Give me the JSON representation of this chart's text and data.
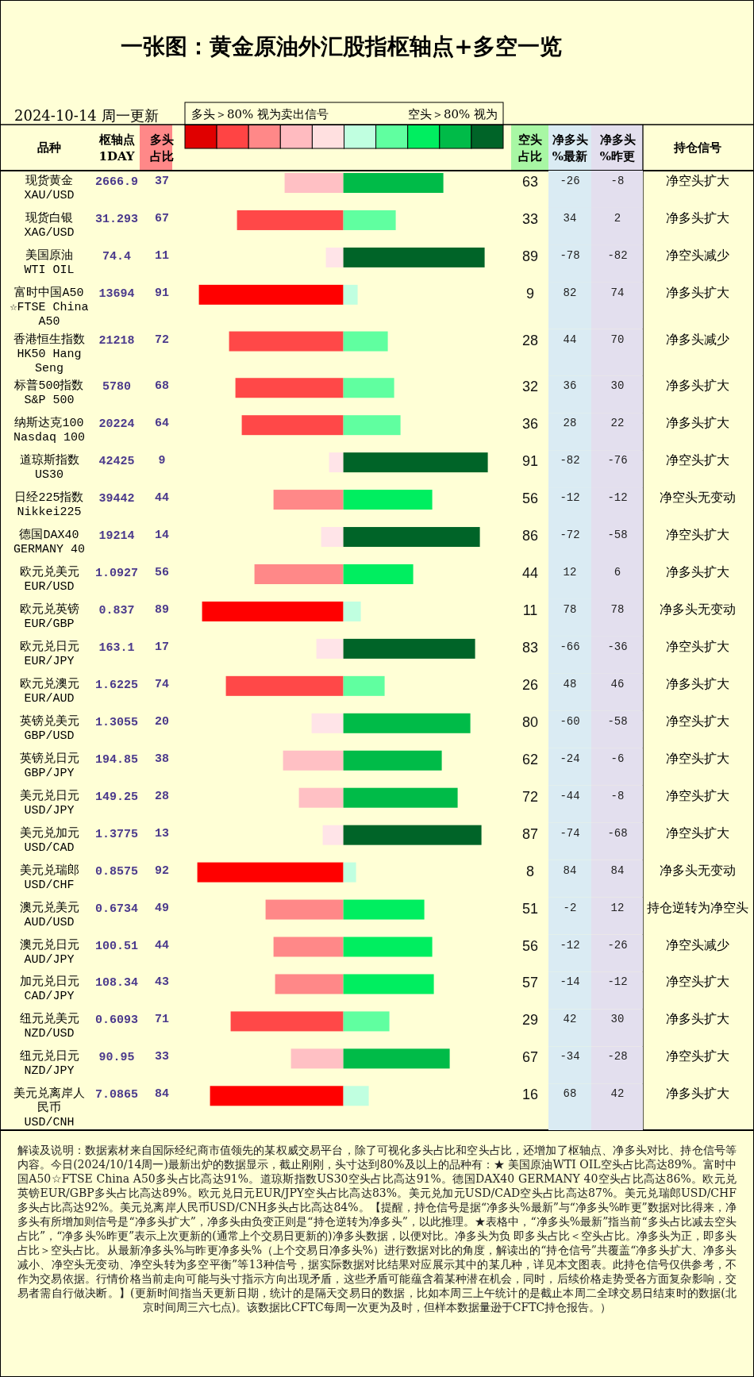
{
  "chart_data": [
    {
      "type": "bar",
      "orientation": "horizontal",
      "title": "一张图：黄金原油外汇股指枢轴点+多空一览",
      "subtitle": "2024-10-14 周一更新",
      "ylabel": "品种",
      "y2label": "枢轴点\n1DAY",
      "categories": [
        "现货黄金\nXAU/USD",
        "现货白银\nXAG/USD",
        "美国原油\nWTI OIL",
        "富时中国A50\n☆FTSE China A50",
        "香港恒生指数\nHK50 Hang Seng",
        "标普500指数\nS&P 500",
        "纳斯达克100\nNasdaq 100",
        "道琼斯指数\nUS30",
        "日经225指数\nNikkei225",
        "德国DAX40\nGERMANY 40",
        "欧元兑美元\nEUR/USD",
        "欧元兑英镑\nEUR/GBP",
        "欧元兑日元\nEUR/JPY",
        "欧元兑澳元\nEUR/AUD",
        "英镑兑美元\nGBP/USD",
        "英镑兑日元\nGBP/JPY",
        "美元兑日元\nUSD/JPY",
        "美元兑加元\nUSD/CAD",
        "美元兑瑞郎\nUSD/CHF",
        "澳元兑美元\nAUD/USD",
        "澳元兑日元\nAUD/JPY",
        "加元兑日元\nCAD/JPY",
        "纽元兑美元\nNZD/USD",
        "纽元兑日元\nNZD/JPY",
        "美元兑离岸人民币\nUSD/CNH"
      ],
      "y2_categories": [
        "2666.9",
        "31.293",
        "74.4",
        "13694",
        "21218",
        "5780",
        "20224",
        "42425",
        "39442",
        "19214",
        "1.0927",
        "0.837",
        "163.1",
        "1.6225",
        "1.3055",
        "194.85",
        "149.25",
        "1.3775",
        "0.8575",
        "0.6734",
        "100.51",
        "108.34",
        "0.6093",
        "90.95",
        "7.0865"
      ],
      "series": [
        {
          "name": "多头占比",
          "values": [
            37,
            67,
            11,
            91,
            72,
            68,
            64,
            9,
            44,
            14,
            56,
            89,
            17,
            74,
            20,
            38,
            28,
            13,
            92,
            49,
            44,
            43,
            71,
            33,
            84
          ],
          "colors": [
            "#ffc0c4",
            "#ff4848",
            "#ffe4e8",
            "#ff0000",
            "#ff4848",
            "#ff4848",
            "#ff4848",
            "#ffe4e8",
            "#ff8888",
            "#ffe4e8",
            "#ff8888",
            "#ff0000",
            "#ffe4e8",
            "#ff4848",
            "#ffe4e8",
            "#ffc0c4",
            "#ffc0c4",
            "#ffe4e8",
            "#ff0000",
            "#ff8888",
            "#ff8888",
            "#ff8888",
            "#ff4848",
            "#ffc0c4",
            "#ff0000"
          ]
        }
      ],
      "data_labels": true,
      "annotations": [
        "多头＞80% 视为卖出信号",
        "解读及说明：数据素材来自国际经纪商市值领先的某权威交易平台，除了可视化多头占比和空头占比，还增加了枢轴点、净多头对比、持仓信号等内容。今日(2024/10/14周一)最新出炉的数据显示，截止刚刚，头寸达到80%及以上的品种有：★ 美国原油WTI OIL空头占比高达89%。富时中国A50☆FTSE China A50多头占比高达91%。道琼斯指数US30空头占比高达91%。德国DAX40 GERMANY 40空头占比高达86%。欧元兑英镑EUR/GBP多头占比高达89%。欧元兑日元EUR/JPY空头占比高达83%。美元兑加元USD/CAD空头占比高达87%。美元兑瑞郎USD/CHF多头占比高达92%。美元兑离岸人民币USD/CNH多头占比高达84%。【提醒，持仓信号是据“净多头%最新”与“净多头%昨更”数据对比得来，净多头有所增加则信号是“净多头扩大”，净多头由负变正则是“持仓逆转为净多头”，以此推理。★表格中，“净多头%最新”指当前“多头占比减去空头占比”，“净多头%昨更”表示上次更新的(通常上个交易日更新的)净多头数据，以便对比。净多头为负 即多头占比＜空头占比。净多头为正，即多头占比＞空头占比。从最新净多头%与昨更净多头%（上个交易日净多头%）进行数据对比的角度，解读出的“持仓信号”共覆盖“净多头扩大、净多头减小、净空头无变动、净空头转为多空平衡”等13种信号，据实际数据对比结果对应展示其中的某几种，详见本文图表。此持仓信号仅供参考，不作为交易依据。行情价格当前走向可能与头寸指示方向出现矛盾，这些矛盾可能蕴含着某种潜在机会，同时，后续价格走势受各方面复杂影响，交易者需自行做决断。】(更新时间指当天更新日期，统计的是隔天交易日的数据，比如本周三上午统计的是截止本周二全球交易日结束时的数据(北京时间周三六七点)。该数据比CFTC每周一次更为及时，但样本数据量逊于CFTC持仓报告。）"
      ]
    },
    {
      "type": "bar",
      "orientation": "horizontal",
      "categories": [
        null,
        null,
        null,
        null,
        null,
        null,
        null,
        null,
        null,
        null,
        null,
        null,
        null,
        null,
        null,
        null,
        null,
        null,
        null,
        null,
        null,
        null,
        null,
        null,
        null
      ],
      "series": [
        {
          "name": "空头占比",
          "values": [
            63,
            33,
            89,
            9,
            28,
            32,
            36,
            91,
            56,
            86,
            44,
            11,
            83,
            26,
            80,
            62,
            72,
            87,
            8,
            51,
            56,
            57,
            29,
            67,
            16
          ],
          "colors": [
            "#00bb48",
            "#60ffa0",
            "#006428",
            "#c0ffe0",
            "#60ffa0",
            "#60ffa0",
            "#60ffa0",
            "#006428",
            "#00ee60",
            "#006428",
            "#00ee60",
            "#c0ffe0",
            "#006428",
            "#60ffa0",
            "#00bb48",
            "#00bb48",
            "#00bb48",
            "#006428",
            "#c0ffe0",
            "#00ee60",
            "#00ee60",
            "#00ee60",
            "#60ffa0",
            "#00bb48",
            "#c0ffe0"
          ]
        }
      ],
      "data_labels": true,
      "annotations": [
        "空头＞80% 视为"
      ]
    },
    {
      "type": "heatmap",
      "categories": [
        "净多头\n%最新",
        "净多头\n%昨更"
      ],
      "y_categories": [
        null,
        null,
        null,
        null,
        null,
        null,
        null,
        null,
        null,
        null,
        null,
        null,
        null,
        null,
        null,
        null,
        null,
        null,
        null,
        null,
        null,
        null,
        null,
        null,
        null
      ],
      "y2_categories": [
        "净空头扩大",
        "净多头扩大",
        "净空头减少",
        "净多头扩大",
        "净多头减少",
        "净多头扩大",
        "净多头扩大",
        "净空头扩大",
        "净空头无变动",
        "净空头扩大",
        "净多头扩大",
        "净多头无变动",
        "净空头扩大",
        "净多头扩大",
        "净空头扩大",
        "净空头扩大",
        "净空头扩大",
        "净空头扩大",
        "净多头无变动",
        "持仓逆转为净空头",
        "净空头减少",
        "净空头扩大",
        "净多头扩大",
        "净空头扩大",
        "净多头扩大"
      ],
      "y2label": "持仓信号",
      "tick_labels": "x",
      "data_labels": true,
      "cells": [
        [
          -26,
          -8
        ],
        [
          34,
          2
        ],
        [
          -78,
          -82
        ],
        [
          82,
          74
        ],
        [
          44,
          70
        ],
        [
          36,
          30
        ],
        [
          28,
          22
        ],
        [
          -82,
          -76
        ],
        [
          -12,
          -12
        ],
        [
          -72,
          -58
        ],
        [
          12,
          6
        ],
        [
          78,
          78
        ],
        [
          -66,
          -36
        ],
        [
          48,
          46
        ],
        [
          -60,
          -58
        ],
        [
          -24,
          -6
        ],
        [
          -44,
          -8
        ],
        [
          -74,
          -68
        ],
        [
          84,
          84
        ],
        [
          -2,
          12
        ],
        [
          -12,
          -26
        ],
        [
          -14,
          -12
        ],
        [
          42,
          30
        ],
        [
          -34,
          -28
        ],
        [
          68,
          42
        ]
      ]
    }
  ]
}
